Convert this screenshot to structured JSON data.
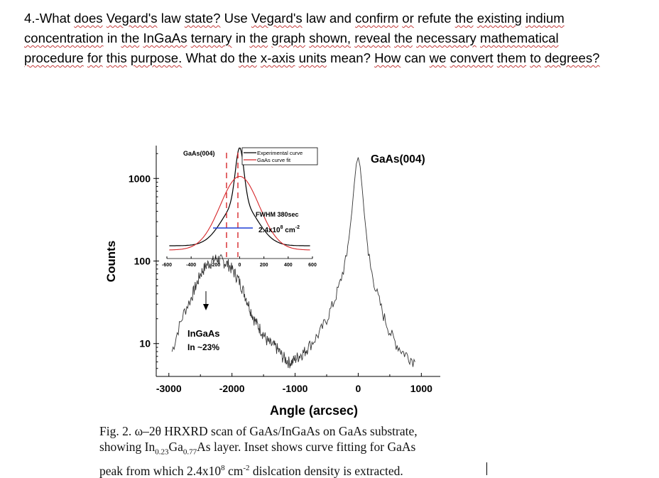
{
  "question": {
    "line1": "4.-What does Vegard's law state? Use Vegard's law and confirm or refute the existing indium",
    "line2": "concentration in the InGaAs ternary in the graph shown, reveal the necessary mathematical",
    "line3": "procedure for this purpose. What do the x-axis units mean? How can we convert them to degrees?"
  },
  "caption": {
    "line1": "Fig. 2. ω–2θ HRXRD scan of GaAs/InGaAs on GaAs substrate,",
    "line2_pre": "showing In",
    "line2_sub1": "0.23",
    "line2_mid": "Ga",
    "line2_sub2": "0.77",
    "line2_post": "As layer. Inset shows curve fitting for GaAs",
    "line3_pre": "peak from which 2.4x10",
    "line3_sup1": "8",
    "line3_mid": " cm",
    "line3_sup2": "-2",
    "line3_post": " dislcation density is extracted."
  },
  "chart_data": [
    {
      "type": "line",
      "scale_y": "log",
      "xlabel": "Angle (arcsec)",
      "ylabel": "Counts",
      "xlim": [
        -3200,
        1300
      ],
      "ylim": [
        4,
        2500
      ],
      "xticks": [
        -3000,
        -2000,
        -1000,
        0,
        1000
      ],
      "xtick_labels": [
        "-3000",
        "-2000",
        "-1000",
        "0",
        "1000"
      ],
      "yticks": [
        10,
        100,
        1000
      ],
      "ytick_labels": [
        "10",
        "100",
        "1000"
      ],
      "series": [
        {
          "x": [
            -2950,
            -2850,
            -2750,
            -2650,
            -2600,
            -2550,
            -2500,
            -2450,
            -2400,
            -2350,
            -2300,
            -2250,
            -2200,
            -2150,
            -2100,
            -2050,
            -2000,
            -1950,
            -1900,
            -1850,
            -1800,
            -1750,
            -1700,
            -1650,
            -1600,
            -1550,
            -1500,
            -1450,
            -1400,
            -1350,
            -1300,
            -1250,
            -1200,
            -1150,
            -1100,
            -1050,
            -1000,
            -950,
            -900,
            -850,
            -800,
            -700,
            -600,
            -500,
            -400,
            -300,
            -200,
            -150,
            -100,
            -60,
            -30,
            0,
            30,
            60,
            100,
            150,
            200,
            300,
            400,
            500,
            600,
            700,
            800,
            900
          ],
          "y": [
            8,
            15,
            25,
            35,
            45,
            55,
            70,
            80,
            90,
            95,
            100,
            108,
            105,
            100,
            95,
            90,
            80,
            70,
            60,
            50,
            40,
            32,
            25,
            20,
            17,
            15,
            13,
            11,
            10,
            9.5,
            9,
            8,
            7,
            6.5,
            6,
            6,
            6.5,
            7,
            7.5,
            8,
            9,
            11,
            14,
            20,
            30,
            50,
            100,
            180,
            400,
            900,
            1500,
            1800,
            1400,
            800,
            350,
            150,
            80,
            40,
            22,
            14,
            10,
            8,
            7,
            6
          ]
        }
      ],
      "annotations": [
        {
          "text": "GaAs(004)",
          "x": 0,
          "y": 1800
        },
        {
          "line1": "InGaAs",
          "line2": "In ~23%",
          "x": -2100,
          "y": 20
        }
      ]
    },
    {
      "type": "line",
      "inset": true,
      "xlim": [
        -600,
        600
      ],
      "xticks": [
        -600,
        -400,
        -200,
        0,
        200,
        400,
        600
      ],
      "xtick_labels": [
        "-600",
        "-400",
        "-200",
        "0",
        "200",
        "400",
        "600"
      ],
      "series": [
        {
          "name": "Experimental curve",
          "color": "#000000",
          "style": "solid"
        },
        {
          "name": "GaAs curve fit",
          "color": "#d6272a",
          "style": "dashed"
        }
      ],
      "legend": "top-right",
      "label_title": "GaAs(004)",
      "fwhm_label": "FWHM 380sec",
      "density_base": "2.4x10",
      "density_exp": "8",
      "density_unit": " cm",
      "density_unit_exp": "-2"
    }
  ]
}
